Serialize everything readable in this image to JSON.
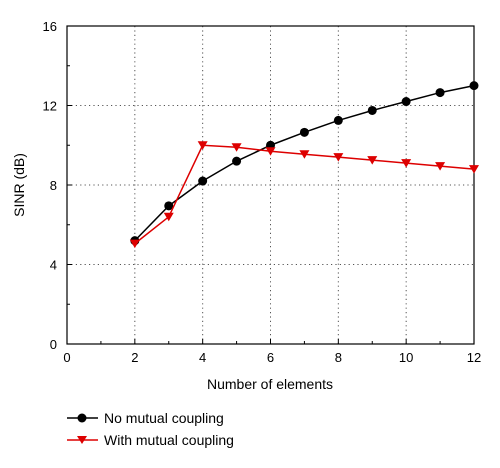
{
  "chart_data": {
    "type": "line",
    "xlabel": "Number of elements",
    "ylabel": "SINR (dB)",
    "xlim": [
      0,
      12
    ],
    "ylim": [
      0,
      16
    ],
    "xticks": [
      0,
      2,
      4,
      6,
      8,
      10,
      12
    ],
    "yticks": [
      0,
      4,
      8,
      12,
      16
    ],
    "grid": "dotted",
    "legend_position": "below",
    "series": [
      {
        "name": "No mutual coupling",
        "color": "#000000",
        "marker": "circle",
        "x": [
          2,
          3,
          4,
          5,
          6,
          7,
          8,
          9,
          10,
          11,
          12
        ],
        "y": [
          5.2,
          6.95,
          8.2,
          9.2,
          10.0,
          10.65,
          11.25,
          11.75,
          12.2,
          12.65,
          13.0
        ]
      },
      {
        "name": "With mutual coupling",
        "color": "#dd0000",
        "marker": "triangle-down",
        "x": [
          2,
          3,
          4,
          5,
          6,
          7,
          8,
          9,
          10,
          11,
          12
        ],
        "y": [
          5.05,
          6.4,
          10.0,
          9.9,
          9.7,
          9.55,
          9.4,
          9.25,
          9.1,
          8.95,
          8.8
        ]
      }
    ]
  }
}
